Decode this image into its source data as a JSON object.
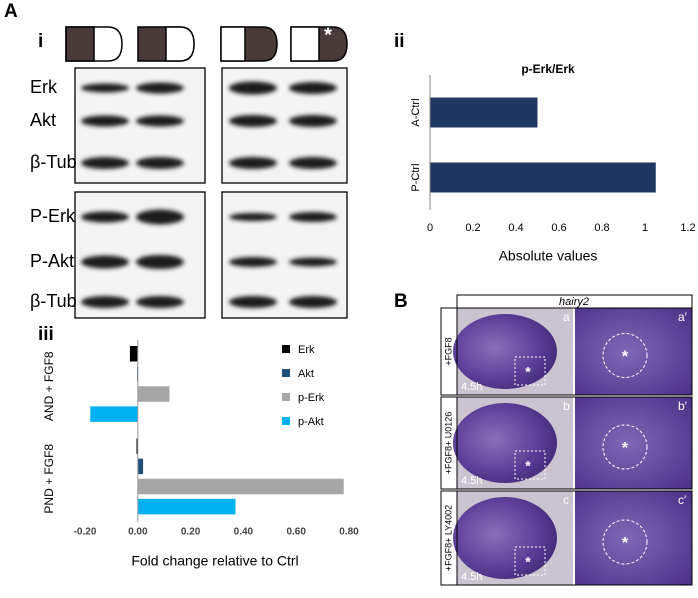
{
  "panels": {
    "A": "A",
    "i": "i",
    "ii": "ii",
    "iii": "iii",
    "B": "B"
  },
  "marker": "*",
  "blots": {
    "rows": [
      "Erk",
      "Akt",
      "β-Tub",
      "P-Erk",
      "P-Akt",
      "β-Tub"
    ]
  },
  "in_situ": {
    "header": "hairy2",
    "rows": [
      {
        "label": "+FGF8",
        "time": "4.5h",
        "left": "a",
        "right": "a′"
      },
      {
        "label": "+FGF8+ U0126",
        "time": "4.5h",
        "left": "b",
        "right": "b′"
      },
      {
        "label": "+FGF8+ LY4002",
        "time": "4.5h",
        "left": "c",
        "right": "c′"
      }
    ]
  },
  "chart_data": [
    {
      "type": "hbar",
      "title": "p-Erk/Erk",
      "categories": [
        "A-Ctrl",
        "P-Ctrl"
      ],
      "values": [
        0.5,
        1.05
      ],
      "color": "#1f3864",
      "xlim": [
        0,
        1.2
      ],
      "xticks": [
        0,
        0.2,
        0.4,
        0.6,
        0.8,
        1,
        1.2
      ],
      "xlabel": "Absolute values"
    },
    {
      "type": "grouped-hbar",
      "categories": [
        "AND + FGF8",
        "PND + FGF8"
      ],
      "series": [
        {
          "name": "Erk",
          "color": "#000000",
          "values": [
            -0.03,
            -0.005
          ]
        },
        {
          "name": "Akt",
          "color": "#1f4e79",
          "values": [
            -0.003,
            0.02
          ]
        },
        {
          "name": "p-Erk",
          "color": "#a6a6a6",
          "values": [
            0.12,
            0.78
          ]
        },
        {
          "name": "p-Akt",
          "color": "#00b0f0",
          "values": [
            -0.18,
            0.37
          ]
        }
      ],
      "xlim": [
        -0.2,
        0.8
      ],
      "xticks": [
        {
          "value": -0.2,
          "label": "-0.20"
        },
        {
          "value": 0,
          "label": "0.00"
        },
        {
          "value": 0.2,
          "label": "0.20"
        },
        {
          "value": 0.4,
          "label": "0.40"
        },
        {
          "value": 0.6,
          "label": "0.60"
        },
        {
          "value": 0.8,
          "label": "0.80"
        }
      ],
      "xlabel": "Fold change relative to Ctrl",
      "legend": "upper-right"
    }
  ]
}
